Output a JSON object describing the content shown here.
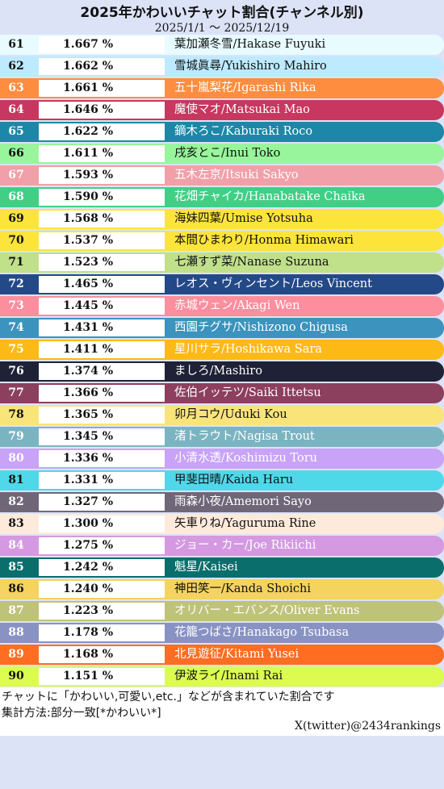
{
  "header": {
    "title": "2025年かわいいチャット割合(チャンネル別)",
    "period": "2025/1/1 〜 2025/12/19"
  },
  "chart_data": {
    "type": "table",
    "title": "2025年かわいいチャット割合(チャンネル別)",
    "columns": [
      "rank",
      "percent",
      "channel"
    ],
    "rows": [
      {
        "rank": "61",
        "value": "1.667 %",
        "name": "葉加瀬冬雪/Hakase Fuyuki",
        "color": "#e8fbff",
        "text_color": "#111111"
      },
      {
        "rank": "62",
        "value": "1.662 %",
        "name": "雪城眞尋/Yukishiro Mahiro",
        "color": "#bdeafe",
        "text_color": "#111111"
      },
      {
        "rank": "63",
        "value": "1.661 %",
        "name": "五十嵐梨花/Igarashi Rika",
        "color": "#fe8d40",
        "text_color": "#ffffff"
      },
      {
        "rank": "64",
        "value": "1.646 %",
        "name": "魔使マオ/Matsukai Mao",
        "color": "#c8375f",
        "text_color": "#ffffff"
      },
      {
        "rank": "65",
        "value": "1.622 %",
        "name": "鏑木ろこ/Kaburaki Roco",
        "color": "#1c87a6",
        "text_color": "#ffffff"
      },
      {
        "rank": "66",
        "value": "1.611 %",
        "name": "戌亥とこ/Inui Toko",
        "color": "#98f59b",
        "text_color": "#111111"
      },
      {
        "rank": "67",
        "value": "1.593 %",
        "name": "五木左京/Itsuki Sakyo",
        "color": "#f1a0a9",
        "text_color": "#ffffff"
      },
      {
        "rank": "68",
        "value": "1.590 %",
        "name": "花畑チャイカ/Hanabatake Chaika",
        "color": "#41cf86",
        "text_color": "#ffffff"
      },
      {
        "rank": "69",
        "value": "1.568 %",
        "name": "海妹四葉/Umise Yotsuha",
        "color": "#fce43a",
        "text_color": "#111111"
      },
      {
        "rank": "70",
        "value": "1.537 %",
        "name": "本間ひまわり/Honma Himawari",
        "color": "#fde43a",
        "text_color": "#111111"
      },
      {
        "rank": "71",
        "value": "1.523 %",
        "name": "七瀬すず菜/Nanase Suzuna",
        "color": "#c0e08a",
        "text_color": "#111111"
      },
      {
        "rank": "72",
        "value": "1.465 %",
        "name": "レオス・ヴィンセント/Leos Vincent",
        "color": "#244987",
        "text_color": "#ffffff"
      },
      {
        "rank": "73",
        "value": "1.445 %",
        "name": "赤城ウェン/Akagi Wen",
        "color": "#fc8e9e",
        "text_color": "#ffffff"
      },
      {
        "rank": "74",
        "value": "1.431 %",
        "name": "西園チグサ/Nishizono Chigusa",
        "color": "#3b93be",
        "text_color": "#ffffff"
      },
      {
        "rank": "75",
        "value": "1.411 %",
        "name": "星川サラ/Hoshikawa Sara",
        "color": "#fdba16",
        "text_color": "#ffffff"
      },
      {
        "rank": "76",
        "value": "1.374 %",
        "name": "ましろ/Mashiro",
        "color": "#1f2236",
        "text_color": "#ffffff"
      },
      {
        "rank": "77",
        "value": "1.366 %",
        "name": "佐伯イッテツ/Saiki Ittetsu",
        "color": "#8d3f5e",
        "text_color": "#ffffff"
      },
      {
        "rank": "78",
        "value": "1.365 %",
        "name": "卯月コウ/Uduki Kou",
        "color": "#f9e47a",
        "text_color": "#111111"
      },
      {
        "rank": "79",
        "value": "1.345 %",
        "name": "渚トラウト/Nagisa Trout",
        "color": "#7bb4c1",
        "text_color": "#ffffff"
      },
      {
        "rank": "80",
        "value": "1.336 %",
        "name": "小清水透/Koshimizu Toru",
        "color": "#c8a3f8",
        "text_color": "#ffffff"
      },
      {
        "rank": "81",
        "value": "1.331 %",
        "name": "甲斐田晴/Kaida Haru",
        "color": "#4fd8e9",
        "text_color": "#111111"
      },
      {
        "rank": "82",
        "value": "1.327 %",
        "name": "雨森小夜/Amemori Sayo",
        "color": "#6f6778",
        "text_color": "#ffffff"
      },
      {
        "rank": "83",
        "value": "1.300 %",
        "name": "矢車りね/Yaguruma Rine",
        "color": "#feeadb",
        "text_color": "#111111"
      },
      {
        "rank": "84",
        "value": "1.275 %",
        "name": "ジョー・カー/Joe Rikiichi",
        "color": "#d499e1",
        "text_color": "#ffffff"
      },
      {
        "rank": "85",
        "value": "1.242 %",
        "name": "魁星/Kaisei",
        "color": "#0a6e6d",
        "text_color": "#ffffff"
      },
      {
        "rank": "86",
        "value": "1.240 %",
        "name": "神田笑一/Kanda Shoichi",
        "color": "#f4d35f",
        "text_color": "#111111"
      },
      {
        "rank": "87",
        "value": "1.223 %",
        "name": "オリバー・エバンス/Oliver Evans",
        "color": "#bfc27a",
        "text_color": "#ffffff"
      },
      {
        "rank": "88",
        "value": "1.178 %",
        "name": "花籠つばさ/Hanakago Tsubasa",
        "color": "#8892c3",
        "text_color": "#ffffff"
      },
      {
        "rank": "89",
        "value": "1.168 %",
        "name": "北見遊征/Kitami Yusei",
        "color": "#ff6d22",
        "text_color": "#ffffff"
      },
      {
        "rank": "90",
        "value": "1.151 %",
        "name": "伊波ライ/Inami Rai",
        "color": "#ddfa4f",
        "text_color": "#111111"
      }
    ]
  },
  "footer": {
    "note1": "チャットに「かわいい,可愛い,etc.」などが含まれていた割合です",
    "note2": "集計方法:部分一致[*かわいい*]",
    "credit": "X(twitter)@2434rankings"
  }
}
